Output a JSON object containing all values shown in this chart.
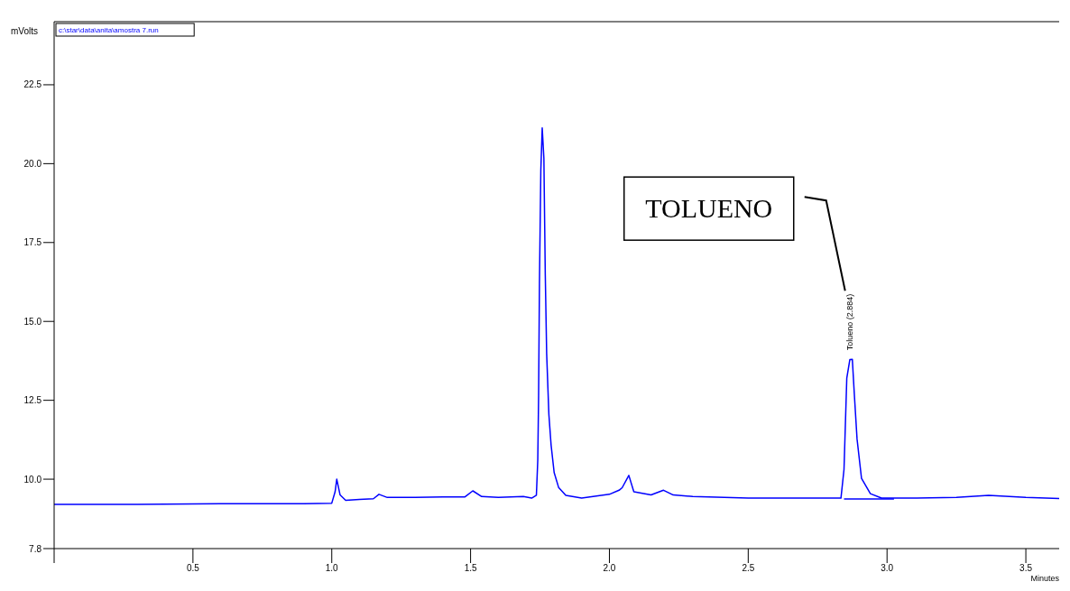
{
  "chart_data": {
    "type": "line",
    "xlabel": "Minutes",
    "ylabel": "mVolts",
    "xlim": [
      0,
      3.62
    ],
    "ylim": [
      7.8,
      24.5
    ],
    "xticks": [
      {
        "value": 0,
        "label": null
      },
      0.5,
      {
        "value": 1,
        "label": "1.0"
      },
      1.5,
      {
        "value": 2,
        "label": "2.0"
      },
      2.5,
      {
        "value": 3,
        "label": "3.0"
      },
      3.5
    ],
    "yticks": [
      7.8,
      {
        "value": 10,
        "label": "10.0"
      },
      12.5,
      {
        "value": 15,
        "label": "15.0"
      },
      17.5,
      {
        "value": 20,
        "label": "20.0"
      },
      22.5
    ],
    "grid": false,
    "legend": false,
    "marker": "none",
    "line_style": "solid",
    "series": [
      {
        "color": "#0000ff",
        "x": [
          0,
          0.3,
          0.6,
          0.9,
          1.0,
          1.012,
          1.018,
          1.03,
          1.05,
          1.1,
          1.15,
          1.17,
          1.2,
          1.3,
          1.4,
          1.48,
          1.508,
          1.54,
          1.6,
          1.69,
          1.72,
          1.737,
          1.742,
          1.745,
          1.748,
          1.753,
          1.758,
          1.764,
          1.769,
          1.774,
          1.782,
          1.79,
          1.801,
          1.817,
          1.843,
          1.9,
          2.0,
          2.035,
          2.046,
          2.07,
          2.088,
          2.15,
          2.195,
          2.23,
          2.3,
          2.5,
          2.7,
          2.834,
          2.845,
          2.855,
          2.866,
          2.875,
          2.882,
          2.892,
          2.908,
          2.94,
          2.98,
          3.1,
          3.25,
          3.366,
          3.5,
          3.62
        ],
        "values": [
          9.2,
          9.2,
          9.22,
          9.22,
          9.24,
          9.6,
          10.0,
          9.5,
          9.33,
          9.36,
          9.38,
          9.52,
          9.42,
          9.42,
          9.44,
          9.44,
          9.63,
          9.45,
          9.42,
          9.45,
          9.4,
          9.49,
          10.6,
          12.64,
          16.2,
          19.78,
          21.13,
          20.17,
          16.49,
          13.98,
          12.05,
          11.08,
          10.21,
          9.74,
          9.49,
          9.4,
          9.52,
          9.65,
          9.73,
          10.12,
          9.6,
          9.5,
          9.65,
          9.5,
          9.45,
          9.4,
          9.4,
          9.4,
          10.31,
          13.2,
          13.79,
          13.8,
          12.72,
          11.27,
          10.03,
          9.54,
          9.4,
          9.4,
          9.42,
          9.49,
          9.42,
          9.39
        ]
      },
      {
        "color": "#0000ff",
        "x": [
          2.845,
          3.025
        ],
        "values": [
          9.37,
          9.37
        ]
      }
    ],
    "annotations": [
      "c:\\star\\data\\anita\\amostra 7.run",
      {
        "text": "Tolueno (2.884)",
        "x": 2.875,
        "y": 13.8
      },
      "TOLUENO"
    ]
  }
}
